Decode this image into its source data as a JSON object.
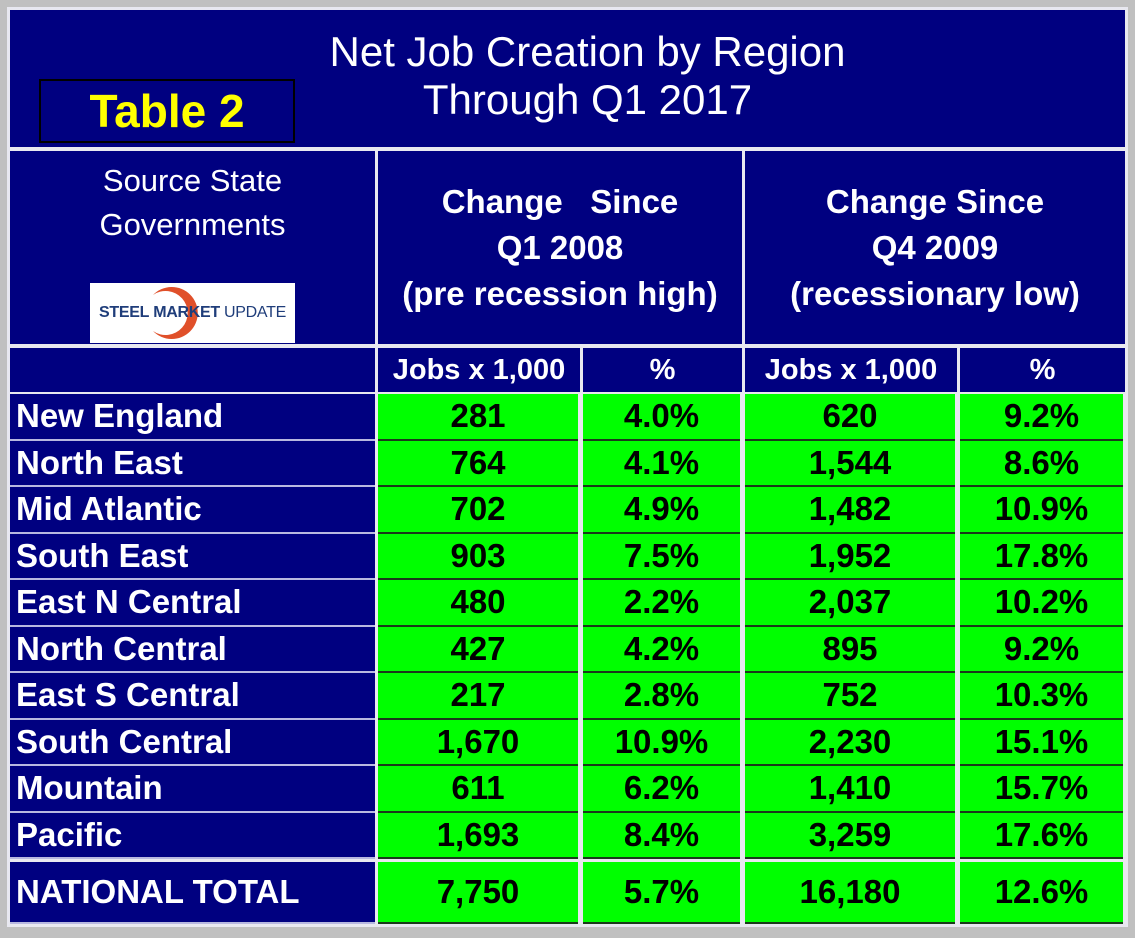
{
  "title": {
    "line1": "Net Job Creation by Region",
    "line2": "Through Q1 2017",
    "badge": "Table 2"
  },
  "source": {
    "line1": "Source State",
    "line2": "Governments",
    "logo_text_bold": "STEEL",
    "logo_text_mid": "MARKET",
    "logo_text_light": "UPDATE"
  },
  "headers": {
    "group1": {
      "line1": "Change   Since",
      "line2": "Q1 2008",
      "line3": "(pre recession high)"
    },
    "group2": {
      "line1": "Change Since",
      "line2": "Q4 2009",
      "line3": "(recessionary low)"
    },
    "sub": [
      "Jobs x 1,000",
      "%",
      "Jobs x 1,000",
      "%"
    ]
  },
  "rows": [
    [
      "New England",
      "281",
      "4.0%",
      "620",
      "9.2%"
    ],
    [
      "North East",
      "764",
      "4.1%",
      "1,544",
      "8.6%"
    ],
    [
      "Mid Atlantic",
      "702",
      "4.9%",
      "1,482",
      "10.9%"
    ],
    [
      "South East",
      "903",
      "7.5%",
      "1,952",
      "17.8%"
    ],
    [
      "East N Central",
      "480",
      "2.2%",
      "2,037",
      "10.2%"
    ],
    [
      "North Central",
      "427",
      "4.2%",
      "895",
      "9.2%"
    ],
    [
      "East S Central",
      "217",
      "2.8%",
      "752",
      "10.3%"
    ],
    [
      "South Central",
      "1,670",
      "10.9%",
      "2,230",
      "15.1%"
    ],
    [
      "Mountain",
      "611",
      "6.2%",
      "1,410",
      "15.7%"
    ],
    [
      "Pacific",
      "1,693",
      "8.4%",
      "3,259",
      "17.6%"
    ]
  ],
  "total": [
    "NATIONAL TOTAL",
    "7,750",
    "5.7%",
    "16,180",
    "12.6%"
  ],
  "colors": {
    "navy": "#000080",
    "green": "#00ff00",
    "badge": "#ffff00"
  }
}
